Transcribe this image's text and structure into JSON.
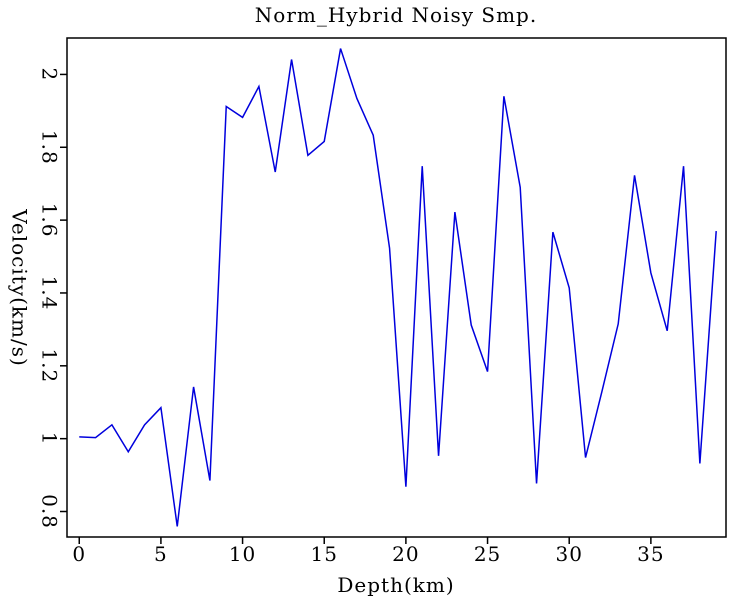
{
  "chart_data": {
    "type": "line",
    "title": "Norm_Hybrid Noisy Smp.",
    "xlabel": "Depth(km)",
    "ylabel": "Velocity(km/s)",
    "x": [
      0,
      1,
      2,
      3,
      4,
      5,
      6,
      7,
      8,
      9,
      10,
      11,
      12,
      13,
      14,
      15,
      16,
      17,
      18,
      19,
      20,
      21,
      22,
      23,
      24,
      25,
      26,
      27,
      28,
      29,
      30,
      31,
      32,
      33,
      34,
      35,
      36,
      37,
      38,
      39
    ],
    "series": [
      {
        "color": "#0000dd",
        "values": [
          1.005,
          1.003,
          1.038,
          0.964,
          1.038,
          1.085,
          0.759,
          1.142,
          0.885,
          1.912,
          1.882,
          1.967,
          1.732,
          2.041,
          1.778,
          1.816,
          2.071,
          1.934,
          1.833,
          1.523,
          0.868,
          1.748,
          0.953,
          1.622,
          1.312,
          1.184,
          1.94,
          1.69,
          0.877,
          1.567,
          1.414,
          0.948,
          1.129,
          1.315,
          1.723,
          1.455,
          1.296,
          1.748,
          0.932,
          1.57
        ]
      }
    ],
    "xlim": [
      -0.75,
      39.6
    ],
    "ylim": [
      0.73,
      2.1
    ],
    "xticks": [
      0,
      5,
      10,
      15,
      20,
      25,
      30,
      35
    ],
    "yticks": [
      0.8,
      1,
      1.2,
      1.4,
      1.6,
      1.8,
      2
    ]
  }
}
